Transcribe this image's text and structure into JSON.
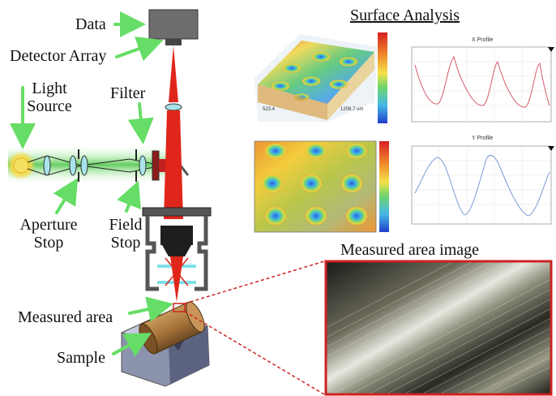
{
  "labels": {
    "data": "Data",
    "detector_array": "Detector Array",
    "light_source": "Light\nSource",
    "filter": "Filter",
    "aperture_stop": "Aperture\nStop",
    "field_stop": "Field\nStop",
    "measured_area": "Measured area",
    "sample": "Sample"
  },
  "headings": {
    "surface_analysis": "Surface Analysis",
    "measured_area_image": "Measured area image"
  },
  "plots": {
    "x_profile_title": "X Profile",
    "y_profile_title": "Y Profile",
    "surface_value_a": "523.4",
    "surface_value_b": "1208.7 um"
  },
  "colors": {
    "beam_red": "#e0261b",
    "beam_green": "#8fe08a",
    "arrow_green": "#66dd66",
    "inset_border": "#cc2222",
    "x_profile_line": "#d65a6a",
    "y_profile_line": "#7a9bd6"
  },
  "icons": [
    "arrow-icon",
    "lens-icon",
    "sun-icon"
  ]
}
